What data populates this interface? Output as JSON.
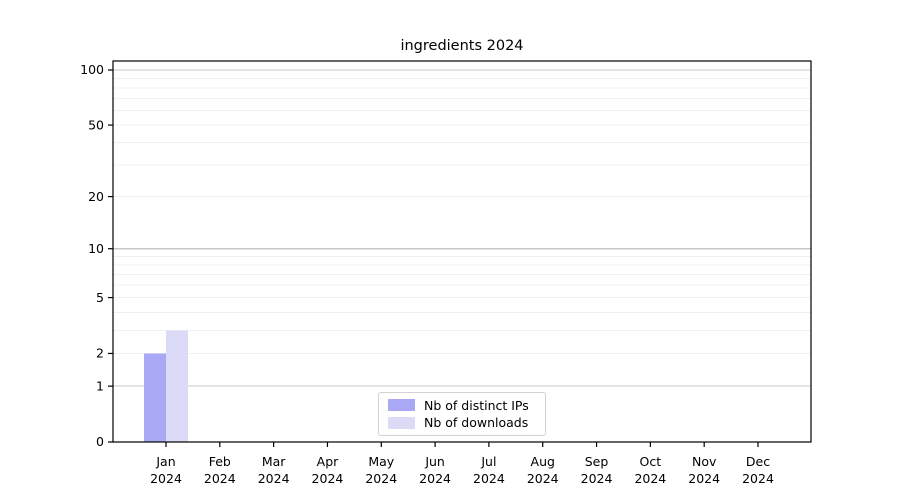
{
  "chart_data": {
    "type": "bar",
    "title": "ingredients 2024",
    "categories": [
      "Jan 2024",
      "Feb 2024",
      "Mar 2024",
      "Apr 2024",
      "May 2024",
      "Jun 2024",
      "Jul 2024",
      "Aug 2024",
      "Sep 2024",
      "Oct 2024",
      "Nov 2024",
      "Dec 2024"
    ],
    "series": [
      {
        "name": "Nb of distinct IPs",
        "color": "#a8a8f4",
        "values": [
          2,
          0,
          0,
          0,
          0,
          0,
          0,
          0,
          0,
          0,
          0,
          0
        ]
      },
      {
        "name": "Nb of downloads",
        "color": "#dbdbf8",
        "values": [
          3,
          0,
          0,
          0,
          0,
          0,
          0,
          0,
          0,
          0,
          0,
          0
        ]
      }
    ],
    "xlabel": "",
    "ylabel": "",
    "yscale": "log1p",
    "ylim": [
      0,
      113
    ],
    "yticks": [
      0,
      1,
      2,
      5,
      10,
      20,
      50,
      100
    ],
    "major_gridlines": [
      1,
      10,
      100
    ],
    "minor_gridlines": [
      2,
      3,
      4,
      5,
      6,
      7,
      8,
      9,
      20,
      30,
      40,
      50,
      60,
      70,
      80,
      90
    ],
    "grid": true,
    "legend_position": "lower center",
    "colors": {
      "major_grid": "#c8c8c8",
      "minor_grid": "#f0f0f0",
      "axis": "#000000",
      "background": "#ffffff"
    }
  }
}
